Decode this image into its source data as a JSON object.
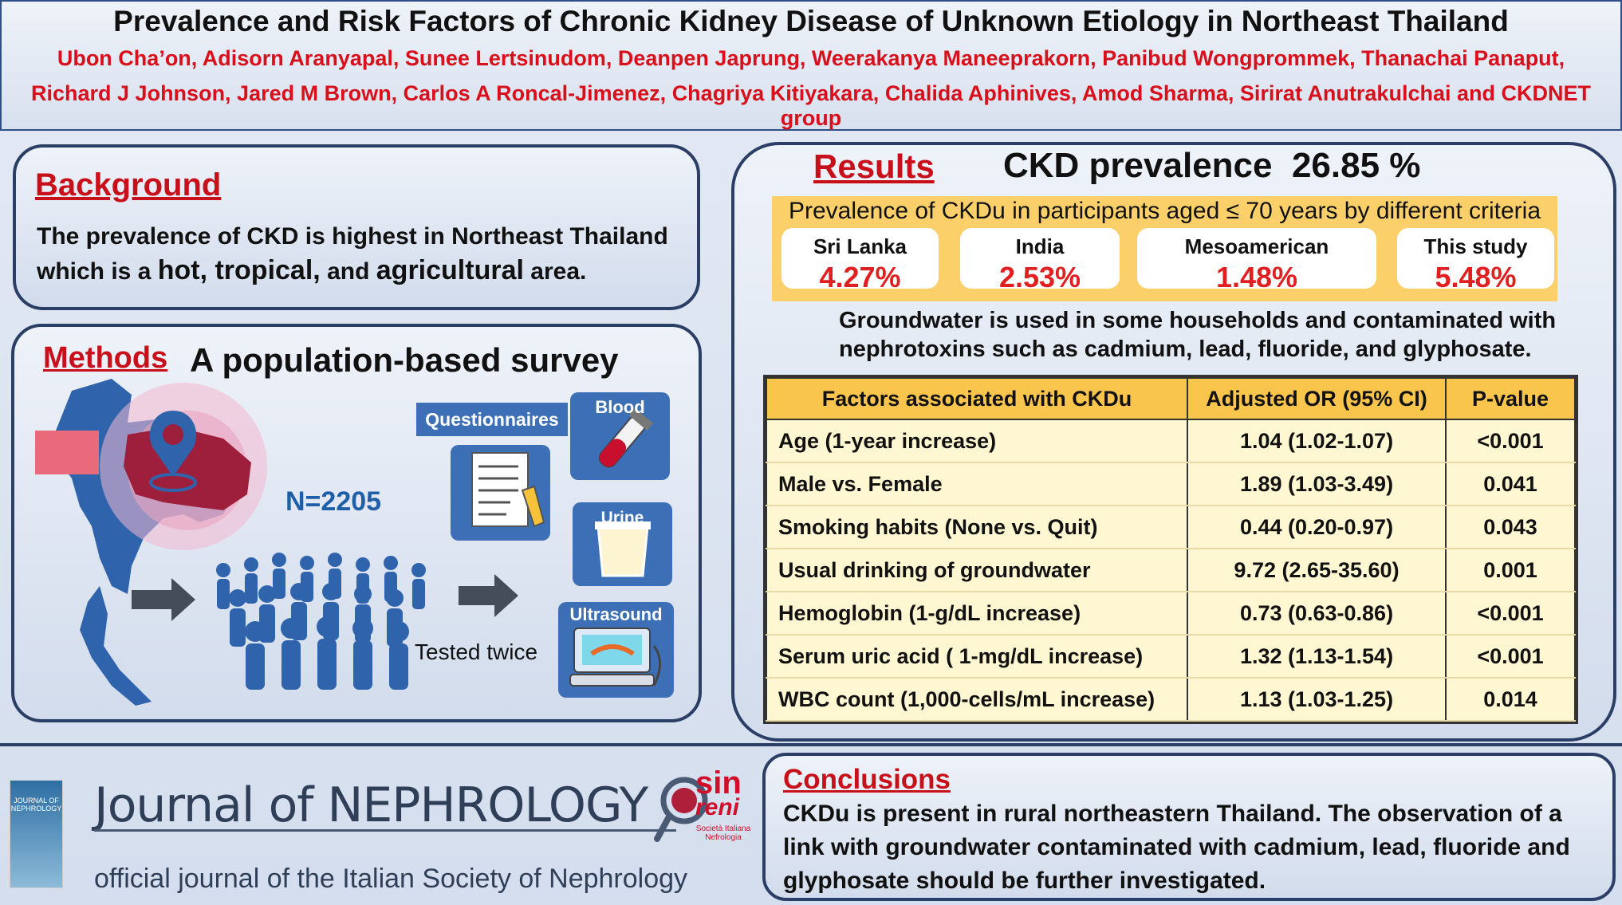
{
  "header": {
    "title": "Prevalence and Risk Factors of Chronic Kidney Disease of Unknown Etiology in Northeast Thailand",
    "authors_line1": "Ubon Cha’on, Adisorn Aranyapal, Sunee Lertsinudom, Deanpen Japrung, Weerakanya Maneeprakorn,  Panibud Wongprommek, Thanachai Panaput,",
    "authors_line2": "Richard J Johnson, Jared M Brown,  Carlos A Roncal-Jimenez, Chagriya Kitiyakara, Chalida Aphinives, Amod Sharma, Sirirat Anutrakulchai  and CKDNET group"
  },
  "background": {
    "title": "Background",
    "line1": "The prevalence of CKD is highest in Northeast Thailand",
    "line2_pre": "which is a",
    "line2_emph": "hot, tropical,",
    "line2_and": "and",
    "line2_emph2": "agricultural",
    "line2_post": "area."
  },
  "methods": {
    "title": "Methods",
    "subtitle": "A population-based survey",
    "n": "N=2205",
    "questionnaires": "Questionnaires",
    "blood": "Blood",
    "urine": "Urine",
    "ultrasound": "Ultrasound",
    "tested": "Tested twice"
  },
  "results": {
    "title": "Results",
    "ckd_label": "CKD prevalence",
    "ckd_value": "26.85 %",
    "criteria_title": "Prevalence of CKDu in participants aged  ≤ 70 years by different criteria",
    "criteria": [
      {
        "name": "Sri Lanka",
        "value": "4.27%"
      },
      {
        "name": "India",
        "value": "2.53%"
      },
      {
        "name": "Mesoamerican",
        "value": "1.48%"
      },
      {
        "name": "This study",
        "value": "5.48%"
      }
    ],
    "groundwater_line1": "Groundwater is used in some households and contaminated with",
    "groundwater_line2": "nephrotoxins  such as cadmium, lead, fluoride, and glyphosate.",
    "table": {
      "headers": [
        "Factors associated with CKDu",
        "Adjusted OR (95% CI)",
        "P-value"
      ],
      "rows": [
        [
          "Age (1-year increase)",
          "1.04 (1.02-1.07)",
          "<0.001"
        ],
        [
          "Male vs. Female",
          "1.89 (1.03-3.49)",
          "0.041"
        ],
        [
          "Smoking habits (None vs. Quit)",
          "0.44 (0.20-0.97)",
          "0.043"
        ],
        [
          "Usual drinking of groundwater",
          "9.72 (2.65-35.60)",
          "0.001"
        ],
        [
          "Hemoglobin (1-g/dL increase)",
          "0.73 (0.63-0.86)",
          "<0.001"
        ],
        [
          "Serum uric acid ( 1-mg/dL increase)",
          "1.32 (1.13-1.54)",
          "<0.001"
        ],
        [
          "WBC count (1,000-cells/mL increase)",
          "1.13 (1.03-1.25)",
          "0.014"
        ]
      ]
    }
  },
  "journal": {
    "name": "Journal of NEPHROLOGY",
    "tagline": "official journal of the Italian Society of Nephrology",
    "cover_title": "JOURNAL OF NEPHROLOGY",
    "sin_logo_text": "sin",
    "sin_logo_text2": "reni",
    "sin_society": "Società Italiana Nefrologia"
  },
  "conclusions": {
    "title": "Conclusions",
    "line1": "CKDu is present in rural northeastern Thailand.  The observation of a",
    "line2": "link with groundwater contaminated with cadmium, lead, fluoride and",
    "line3": "glyphosate should be further investigated."
  },
  "colors": {
    "accent_red": "#c8101a",
    "navy": "#2b3f66",
    "gold": "#f9c54c",
    "icon_blue": "#3d6fb6"
  }
}
